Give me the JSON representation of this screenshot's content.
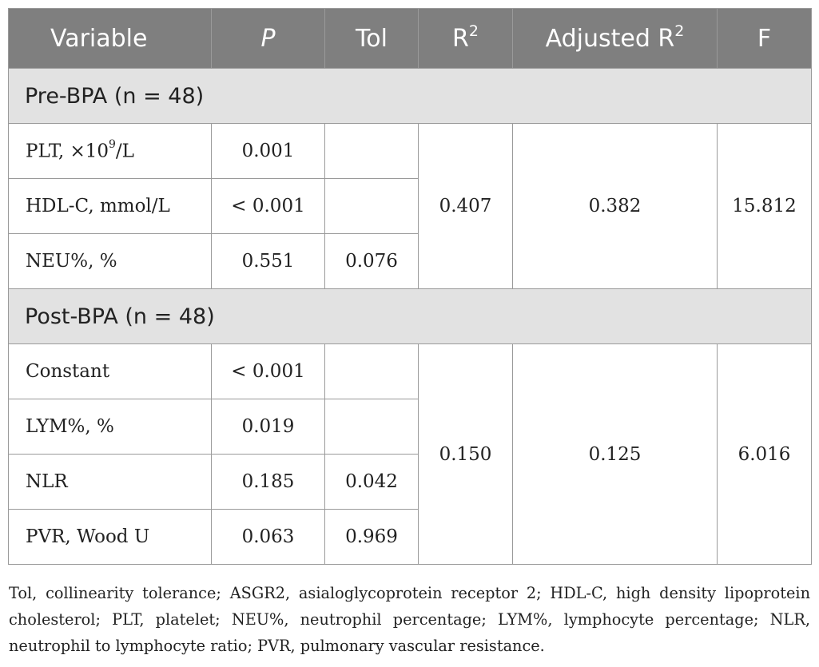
{
  "table": {
    "headers": {
      "variable": "Variable",
      "p": "P",
      "tol": "Tol",
      "r2_base": "R",
      "r2_sup": "2",
      "adj_r2_base": "Adjusted R",
      "adj_r2_sup": "2",
      "f": "F"
    },
    "groups": [
      {
        "label": "Pre-BPA (n = 48)",
        "r2": "0.407",
        "adj_r2": "0.382",
        "f": "15.812",
        "rows": [
          {
            "variable": "PLT, ×10",
            "variable_sup": "9",
            "variable_suffix": "/L",
            "p": "0.001",
            "tol": ""
          },
          {
            "variable": "HDL-C, mmol/L",
            "p": "< 0.001",
            "tol": ""
          },
          {
            "variable": "NEU%, %",
            "p": "0.551",
            "tol": "0.076"
          }
        ]
      },
      {
        "label": "Post-BPA (n = 48)",
        "r2": "0.150",
        "adj_r2": "0.125",
        "f": "6.016",
        "rows": [
          {
            "variable": "Constant",
            "p": "< 0.001",
            "tol": ""
          },
          {
            "variable": "LYM%, %",
            "p": "0.019",
            "tol": ""
          },
          {
            "variable": "NLR",
            "p": "0.185",
            "tol": "0.042"
          },
          {
            "variable": "PVR, Wood U",
            "p": "0.063",
            "tol": "0.969"
          }
        ]
      }
    ]
  },
  "footnote": "Tol, collinearity tolerance; ASGR2, asialoglycoprotein receptor 2; HDL-C, high density lipoprotein cholesterol; PLT, platelet; NEU%, neutrophil percentage; LYM%, lymphocyte percentage; NLR, neutrophil to lymphocyte ratio; PVR, pulmonary vascular resistance."
}
